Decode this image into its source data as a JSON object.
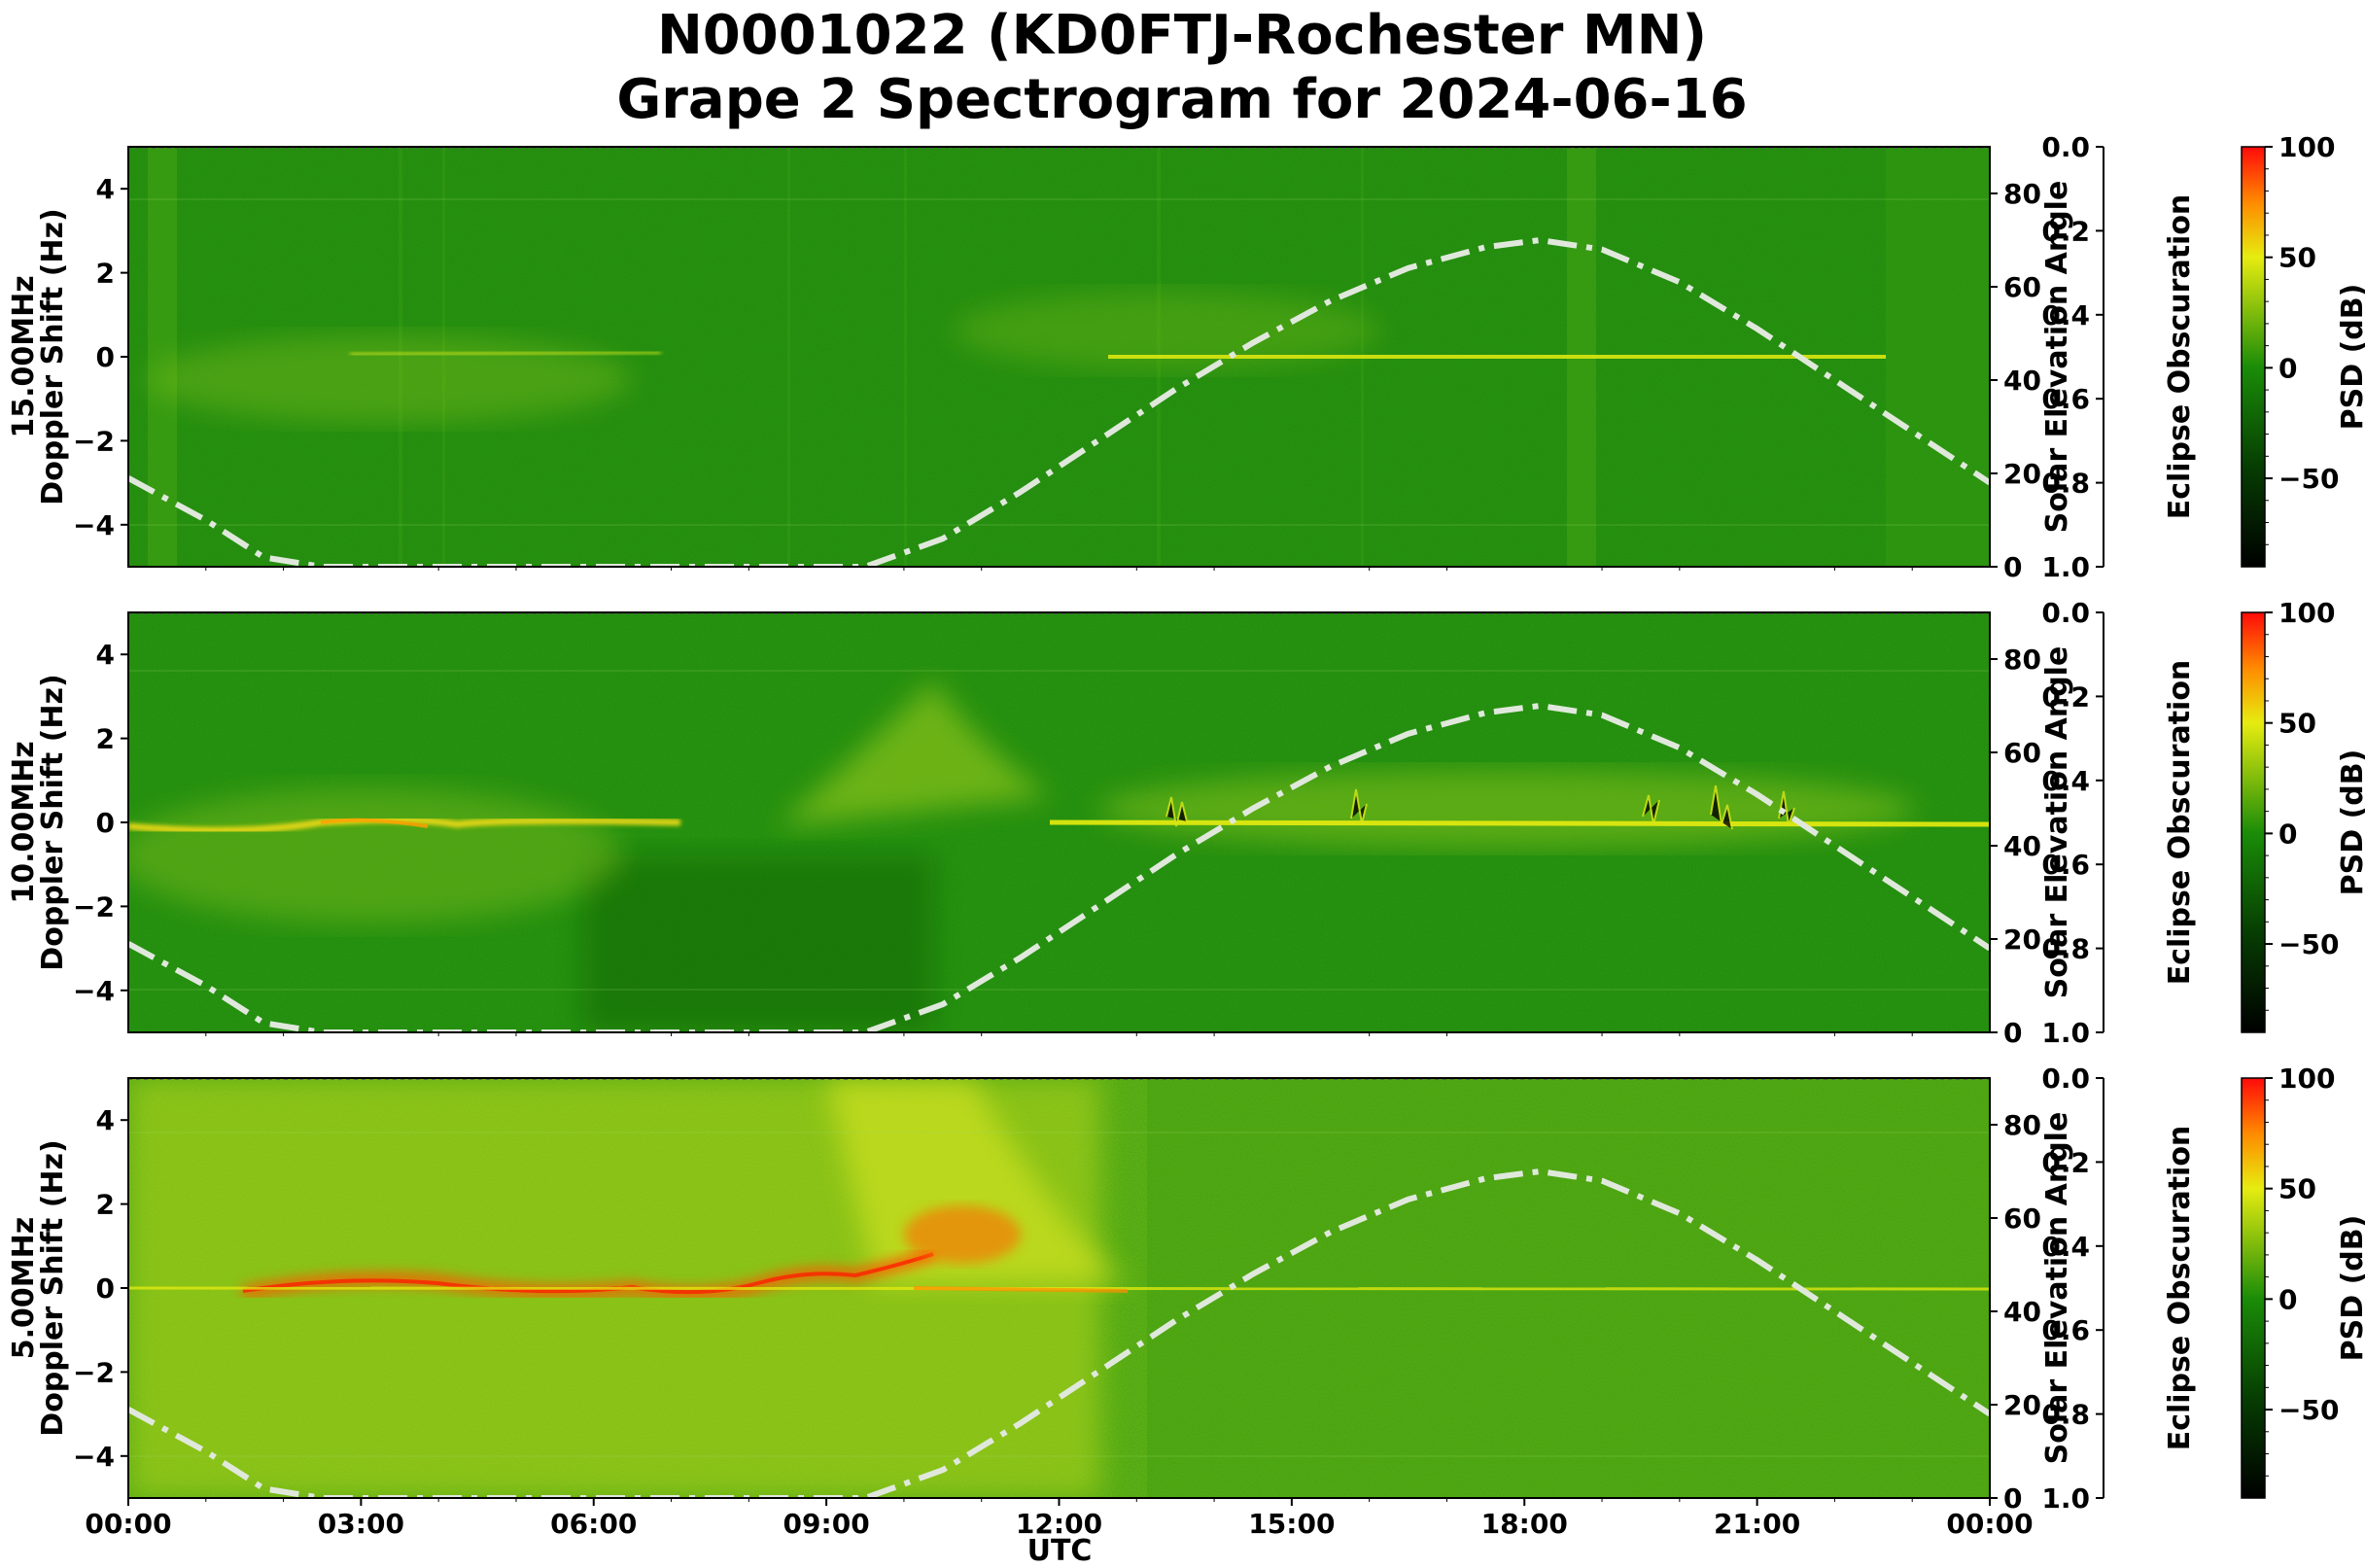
{
  "figure": {
    "title_line1": "N0001022 (KD0FTJ-Rochester MN)",
    "title_line2": "Grape 2 Spectrogram for 2024-06-16",
    "xlabel": "UTC"
  },
  "chart_data": [
    {
      "type": "heatmap",
      "panel": "15.00MHz",
      "ylabel_line1": "15.00MHz",
      "ylabel_line2": "Doppler Shift (Hz)",
      "y2label": "Solar Elevation Angle",
      "y3label": "Eclipse Obscuration",
      "cbar_label": "PSD (dB)",
      "xlim": [
        0,
        24
      ],
      "x_ticks": [
        "00:00",
        "03:00",
        "06:00",
        "09:00",
        "12:00",
        "15:00",
        "18:00",
        "21:00",
        "00:00"
      ],
      "ylim": [
        -5,
        5
      ],
      "y_ticks": [
        "4",
        "2",
        "0",
        "−2",
        "−4"
      ],
      "y_tick_values": [
        4,
        2,
        0,
        -2,
        -4
      ],
      "y2lim": [
        0,
        90
      ],
      "y2_ticks": [
        0,
        20,
        40,
        60,
        80
      ],
      "y3lim": [
        1.0,
        0.0
      ],
      "y3_ticks": [
        "0.0",
        "0.2",
        "0.4",
        "0.6",
        "0.8",
        "1.0"
      ],
      "cbar_range": [
        -90,
        100
      ],
      "cbar_ticks": [
        "100",
        "50",
        "0",
        "−50"
      ],
      "cbar_tick_values": [
        100,
        50,
        0,
        -50
      ],
      "background_level": "low",
      "features": [
        "weak diffuse 0 Hz trace 02:00-07:00",
        "clear 0 Hz carrier 12:00-23:00",
        "noise band 00:15-00:40",
        "noise band 18:15-18:45"
      ]
    },
    {
      "type": "heatmap",
      "panel": "10.00MHz",
      "ylabel_line1": "10.00MHz",
      "ylabel_line2": "Doppler Shift (Hz)",
      "y2label": "Solar Elevation Angle",
      "y3label": "Eclipse Obscuration",
      "cbar_label": "PSD (dB)",
      "xlim": [
        0,
        24
      ],
      "x_ticks": [
        "00:00",
        "03:00",
        "06:00",
        "09:00",
        "12:00",
        "15:00",
        "18:00",
        "21:00",
        "00:00"
      ],
      "ylim": [
        -5,
        5
      ],
      "y_ticks": [
        "4",
        "2",
        "0",
        "−2",
        "−4"
      ],
      "y_tick_values": [
        4,
        2,
        0,
        -2,
        -4
      ],
      "y2lim": [
        0,
        90
      ],
      "y2_ticks": [
        0,
        20,
        40,
        60,
        80
      ],
      "y3lim": [
        1.0,
        0.0
      ],
      "y3_ticks": [
        "0.0",
        "0.2",
        "0.4",
        "0.6",
        "0.8",
        "1.0"
      ],
      "cbar_range": [
        -90,
        100
      ],
      "cbar_ticks": [
        "100",
        "50",
        "0",
        "−50"
      ],
      "cbar_tick_values": [
        100,
        50,
        0,
        -50
      ],
      "background_level": "low-medium",
      "features": [
        "strong 0 Hz trace 00:00-07:00",
        "diffuse spread up to +2 Hz near 10:30",
        "0 Hz carrier with spreading 12:00-24:00"
      ]
    },
    {
      "type": "heatmap",
      "panel": "5.00MHz",
      "ylabel_line1": "5.00MHz",
      "ylabel_line2": "Doppler Shift (Hz)",
      "y2label": "Solar Elevation Angle",
      "y3label": "Eclipse Obscuration",
      "cbar_label": "PSD (dB)",
      "xlim": [
        0,
        24
      ],
      "x_ticks": [
        "00:00",
        "03:00",
        "06:00",
        "09:00",
        "12:00",
        "15:00",
        "18:00",
        "21:00",
        "00:00"
      ],
      "ylim": [
        -5,
        5
      ],
      "y_ticks": [
        "4",
        "2",
        "0",
        "−2",
        "−4"
      ],
      "y_tick_values": [
        4,
        2,
        0,
        -2,
        -4
      ],
      "y2lim": [
        0,
        90
      ],
      "y2_ticks": [
        0,
        20,
        40,
        60,
        80
      ],
      "y3lim": [
        1.0,
        0.0
      ],
      "y3_ticks": [
        "0.0",
        "0.2",
        "0.4",
        "0.6",
        "0.8",
        "1.0"
      ],
      "cbar_range": [
        -90,
        100
      ],
      "cbar_ticks": [
        "100",
        "50",
        "0",
        "−50"
      ],
      "cbar_tick_values": [
        100,
        50,
        0,
        -50
      ],
      "background_level": "high",
      "features": [
        "intense red 0 Hz trace 02:00-11:00",
        "broad yellow spread 00:00-12:00",
        "burst near +1 Hz at 10:30-11:00"
      ]
    }
  ],
  "solar_elevation": {
    "style": "dash-dot",
    "color": "#e0e8dc",
    "hours": [
      0,
      1,
      1.75,
      2.5,
      9.5,
      10.5,
      11.5,
      12.5,
      13.5,
      14.5,
      15.5,
      16.5,
      17.5,
      18.2,
      19,
      20,
      21,
      22,
      23,
      24
    ],
    "degrees": [
      19,
      10,
      2,
      0,
      0,
      6,
      16,
      27,
      38,
      48,
      57,
      64,
      68.5,
      70,
      68,
      61,
      51,
      40,
      29,
      18
    ]
  },
  "colorscale": {
    "stops": [
      {
        "value": -90,
        "color": "#000000"
      },
      {
        "value": -45,
        "color": "#063d02"
      },
      {
        "value": 0,
        "color": "#1a8c08"
      },
      {
        "value": 50,
        "color": "#e6ec10"
      },
      {
        "value": 75,
        "color": "#ff8a00"
      },
      {
        "value": 100,
        "color": "#ff0a0a"
      }
    ]
  }
}
